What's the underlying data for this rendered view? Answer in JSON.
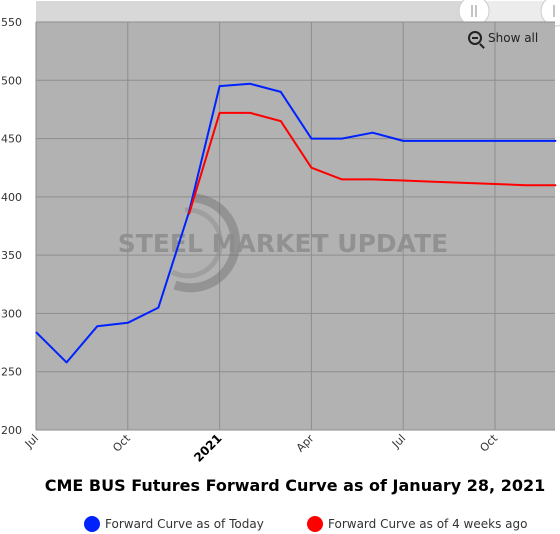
{
  "chart_data": {
    "type": "line",
    "title": "CME BUS Futures Forward Curve as of January 28, 2021",
    "watermark": "STEEL MARKET UPDATE",
    "ylim": [
      200,
      550
    ],
    "yticks": [
      200,
      250,
      300,
      350,
      400,
      450,
      500,
      550
    ],
    "xlim": [
      "2020-07",
      "2021-12"
    ],
    "xticks": [
      {
        "label": "Jul",
        "x": "2020-07",
        "bold": false
      },
      {
        "label": "Oct",
        "x": "2020-10",
        "bold": false
      },
      {
        "label": "2021",
        "x": "2021-01",
        "bold": true
      },
      {
        "label": "Apr",
        "x": "2021-04",
        "bold": false
      },
      {
        "label": "Jul",
        "x": "2021-07",
        "bold": false
      },
      {
        "label": "Oct",
        "x": "2021-10",
        "bold": false
      }
    ],
    "grid": true,
    "legend_position": "bottom",
    "series": [
      {
        "name": "Forward Curve as of Today",
        "color": "#0022ff",
        "points": [
          [
            "2020-07",
            284
          ],
          [
            "2020-08",
            258
          ],
          [
            "2020-09",
            289
          ],
          [
            "2020-10",
            292
          ],
          [
            "2020-11",
            305
          ],
          [
            "2020-12",
            387
          ],
          [
            "2021-01",
            495
          ],
          [
            "2021-02",
            497
          ],
          [
            "2021-03",
            490
          ],
          [
            "2021-04",
            450
          ],
          [
            "2021-05",
            450
          ],
          [
            "2021-06",
            455
          ],
          [
            "2021-07",
            448
          ],
          [
            "2021-08",
            448
          ],
          [
            "2021-09",
            448
          ],
          [
            "2021-10",
            448
          ],
          [
            "2021-11",
            448
          ],
          [
            "2021-12",
            448
          ]
        ]
      },
      {
        "name": "Forward Curve as of 4 weeks ago",
        "color": "#ff0000",
        "points": [
          [
            "2020-12",
            385
          ],
          [
            "2021-01",
            472
          ],
          [
            "2021-02",
            472
          ],
          [
            "2021-03",
            465
          ],
          [
            "2021-04",
            425
          ],
          [
            "2021-05",
            415
          ],
          [
            "2021-06",
            415
          ],
          [
            "2021-07",
            414
          ],
          [
            "2021-08",
            413
          ],
          [
            "2021-09",
            412
          ],
          [
            "2021-10",
            411
          ],
          [
            "2021-11",
            410
          ],
          [
            "2021-12",
            410
          ]
        ]
      }
    ]
  },
  "controls": {
    "show_all_label": "Show all",
    "zoom_icon": "zoom-out-icon",
    "scrollbar_handle_icon": "grip-icon"
  }
}
